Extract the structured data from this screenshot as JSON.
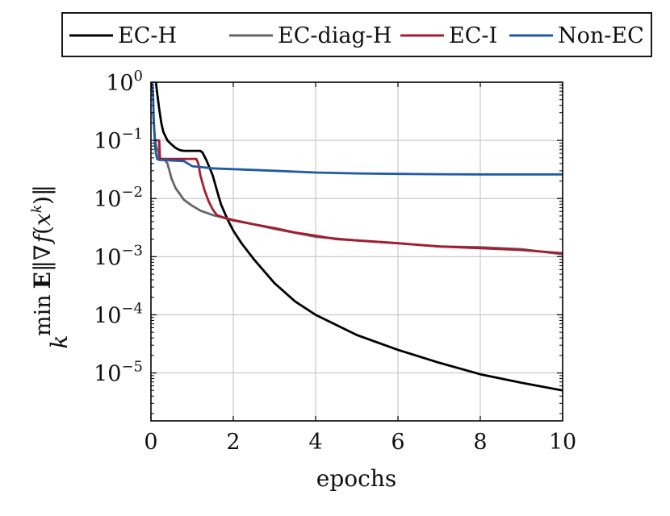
{
  "chart_data": {
    "type": "line",
    "xlabel": "epochs",
    "ylabel": "min_k E‖∇f(x^k)‖",
    "xlim": [
      0,
      10
    ],
    "ylim": [
      1.5e-06,
      1
    ],
    "yscale": "log",
    "grid": true,
    "legend_position": "top",
    "x_ticks": [
      0,
      2,
      4,
      6,
      8,
      10
    ],
    "x_tick_labels": [
      "0",
      "2",
      "4",
      "6",
      "8",
      "10"
    ],
    "y_ticks": [
      1,
      0.1,
      0.01,
      0.001,
      0.0001,
      1e-05
    ],
    "y_tick_labels": [
      {
        "base": "10",
        "exp": "0"
      },
      {
        "base": "10",
        "exp": "−1"
      },
      {
        "base": "10",
        "exp": "−2"
      },
      {
        "base": "10",
        "exp": "−3"
      },
      {
        "base": "10",
        "exp": "−4"
      },
      {
        "base": "10",
        "exp": "−5"
      }
    ],
    "series": [
      {
        "name": "EC-H",
        "color": "#000000",
        "x": [
          0.12,
          0.15,
          0.2,
          0.25,
          0.3,
          0.4,
          0.5,
          0.6,
          0.7,
          0.8,
          1.2,
          1.25,
          1.35,
          1.5,
          1.6,
          1.7,
          1.85,
          2.0,
          2.2,
          2.5,
          3.0,
          3.5,
          4.0,
          5.0,
          6.0,
          7.0,
          8.0,
          9.0,
          10.0
        ],
        "y": [
          1.0,
          0.65,
          0.35,
          0.2,
          0.14,
          0.1,
          0.085,
          0.074,
          0.068,
          0.066,
          0.066,
          0.062,
          0.045,
          0.025,
          0.014,
          0.008,
          0.0045,
          0.0028,
          0.0017,
          0.0009,
          0.00035,
          0.00017,
          0.0001,
          4.5e-05,
          2.5e-05,
          1.5e-05,
          9.5e-06,
          6.8e-06,
          5e-06
        ]
      },
      {
        "name": "EC-diag-H",
        "color": "#666666",
        "x": [
          0.05,
          0.1,
          0.15,
          0.18,
          0.2,
          0.25,
          0.3,
          0.35,
          0.4,
          0.45,
          0.5,
          0.6,
          0.7,
          0.8,
          1.0,
          1.2,
          1.5,
          2.0,
          2.5,
          3.0,
          4.0,
          5.0,
          6.0,
          7.0,
          8.0,
          9.0,
          10.0
        ],
        "y": [
          0.3,
          0.1,
          0.07,
          0.065,
          0.047,
          0.046,
          0.046,
          0.045,
          0.04,
          0.03,
          0.022,
          0.015,
          0.012,
          0.0095,
          0.0075,
          0.0062,
          0.0052,
          0.0043,
          0.0036,
          0.003,
          0.0022,
          0.0019,
          0.0017,
          0.0015,
          0.00145,
          0.00135,
          0.0011
        ]
      },
      {
        "name": "EC-I",
        "color": "#a51c30",
        "x": [
          0.12,
          0.15,
          0.2,
          0.22,
          0.25,
          0.3,
          0.5,
          0.6,
          0.8,
          1.0,
          1.1,
          1.15,
          1.2,
          1.3,
          1.4,
          1.5,
          1.6,
          1.8,
          2.0,
          2.5,
          3.0,
          3.5,
          4.0,
          4.5,
          5.0,
          6.0,
          7.0,
          8.0,
          9.0,
          10.0
        ],
        "y": [
          0.1,
          0.1,
          0.1,
          0.05,
          0.048,
          0.048,
          0.048,
          0.048,
          0.048,
          0.048,
          0.048,
          0.04,
          0.025,
          0.014,
          0.009,
          0.0065,
          0.0052,
          0.0046,
          0.0042,
          0.0036,
          0.0031,
          0.0026,
          0.0023,
          0.002,
          0.0019,
          0.0017,
          0.0015,
          0.0014,
          0.0013,
          0.00115
        ]
      },
      {
        "name": "Non-EC",
        "color": "#1f5aa6",
        "x": [
          0.03,
          0.05,
          0.07,
          0.1,
          0.12,
          0.15,
          0.2,
          0.3,
          0.5,
          0.8,
          1.0,
          1.5,
          2.0,
          3.0,
          4.0,
          5.0,
          6.0,
          7.0,
          8.0,
          9.0,
          10.0
        ],
        "y": [
          1.0,
          0.6,
          0.2,
          0.08,
          0.06,
          0.048,
          0.046,
          0.046,
          0.045,
          0.044,
          0.036,
          0.033,
          0.032,
          0.03,
          0.028,
          0.027,
          0.0265,
          0.0262,
          0.026,
          0.026,
          0.026
        ]
      }
    ]
  }
}
